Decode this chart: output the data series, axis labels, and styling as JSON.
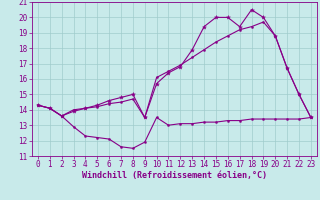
{
  "xlabel": "Windchill (Refroidissement éolien,°C)",
  "bg_color": "#c8eaea",
  "grid_color": "#a0cccc",
  "line_color": "#880088",
  "xlim": [
    -0.5,
    23.5
  ],
  "ylim": [
    11,
    21
  ],
  "xticks": [
    0,
    1,
    2,
    3,
    4,
    5,
    6,
    7,
    8,
    9,
    10,
    11,
    12,
    13,
    14,
    15,
    16,
    17,
    18,
    19,
    20,
    21,
    22,
    23
  ],
  "yticks": [
    11,
    12,
    13,
    14,
    15,
    16,
    17,
    18,
    19,
    20,
    21
  ],
  "line1_x": [
    0,
    1,
    2,
    3,
    4,
    5,
    6,
    7,
    8,
    9,
    10,
    11,
    12,
    13,
    14,
    15,
    16,
    17,
    18,
    19,
    20,
    21,
    22,
    23
  ],
  "line1_y": [
    14.3,
    14.1,
    13.6,
    12.9,
    12.3,
    12.2,
    12.1,
    11.6,
    11.5,
    11.9,
    13.5,
    13.0,
    13.1,
    13.1,
    13.2,
    13.2,
    13.3,
    13.3,
    13.4,
    13.4,
    13.4,
    13.4,
    13.4,
    13.5
  ],
  "line2_x": [
    0,
    1,
    2,
    3,
    4,
    5,
    6,
    7,
    8,
    9,
    10,
    11,
    12,
    13,
    14,
    15,
    16,
    17,
    18,
    19,
    20,
    21,
    22,
    23
  ],
  "line2_y": [
    14.3,
    14.1,
    13.6,
    14.0,
    14.1,
    14.2,
    14.4,
    14.5,
    14.7,
    13.5,
    16.1,
    16.5,
    16.9,
    17.4,
    17.9,
    18.4,
    18.8,
    19.2,
    19.4,
    19.7,
    18.8,
    16.7,
    15.0,
    13.5
  ],
  "line3_x": [
    0,
    1,
    2,
    3,
    4,
    5,
    6,
    7,
    8,
    9,
    10,
    11,
    12,
    13,
    14,
    15,
    16,
    17,
    18,
    19,
    20,
    21,
    22,
    23
  ],
  "line3_y": [
    14.3,
    14.1,
    13.6,
    13.9,
    14.1,
    14.3,
    14.6,
    14.8,
    15.0,
    13.5,
    15.7,
    16.4,
    16.8,
    17.9,
    19.4,
    20.0,
    20.0,
    19.4,
    20.5,
    20.0,
    18.8,
    16.7,
    15.0,
    13.5
  ],
  "xlabel_fontsize": 6,
  "tick_fontsize": 5.5
}
